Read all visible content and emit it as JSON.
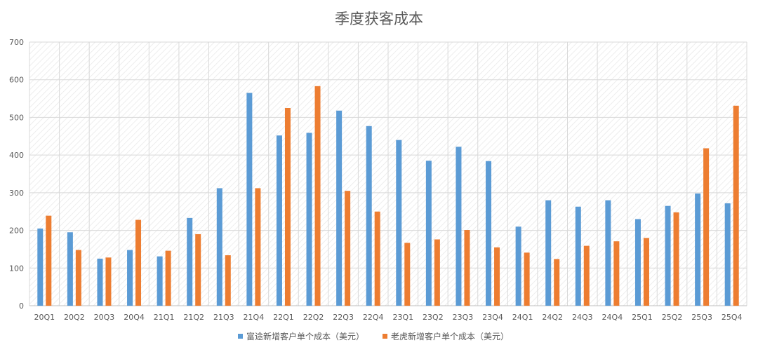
{
  "chart_data": {
    "type": "bar",
    "title": "季度获客成本",
    "xlabel": "",
    "ylabel": "",
    "ylim": [
      0,
      700
    ],
    "yticks": [
      0,
      100,
      200,
      300,
      400,
      500,
      600,
      700
    ],
    "grid": true,
    "legend_position": "bottom",
    "categories": [
      "20Q1",
      "20Q2",
      "20Q3",
      "20Q4",
      "21Q1",
      "21Q2",
      "21Q3",
      "21Q4",
      "22Q1",
      "22Q2",
      "22Q3",
      "22Q4",
      "23Q1",
      "23Q2",
      "23Q3",
      "23Q4",
      "24Q1",
      "24Q2",
      "24Q3",
      "24Q4",
      "25Q1",
      "25Q2",
      "25Q3",
      "25Q4"
    ],
    "series": [
      {
        "name": "富途新增客户单个成本（美元）",
        "color": "#5B9BD5",
        "values": [
          205,
          195,
          125,
          148,
          131,
          233,
          312,
          565,
          452,
          459,
          518,
          477,
          440,
          385,
          422,
          384,
          210,
          280,
          263,
          280,
          230,
          265,
          298,
          272
        ]
      },
      {
        "name": "老虎新增客户单个成本（美元）",
        "color": "#ED7D31",
        "values": [
          239,
          148,
          128,
          228,
          146,
          190,
          134,
          312,
          525,
          583,
          305,
          250,
          167,
          176,
          201,
          155,
          141,
          124,
          159,
          171,
          180,
          248,
          418,
          531
        ]
      }
    ]
  }
}
